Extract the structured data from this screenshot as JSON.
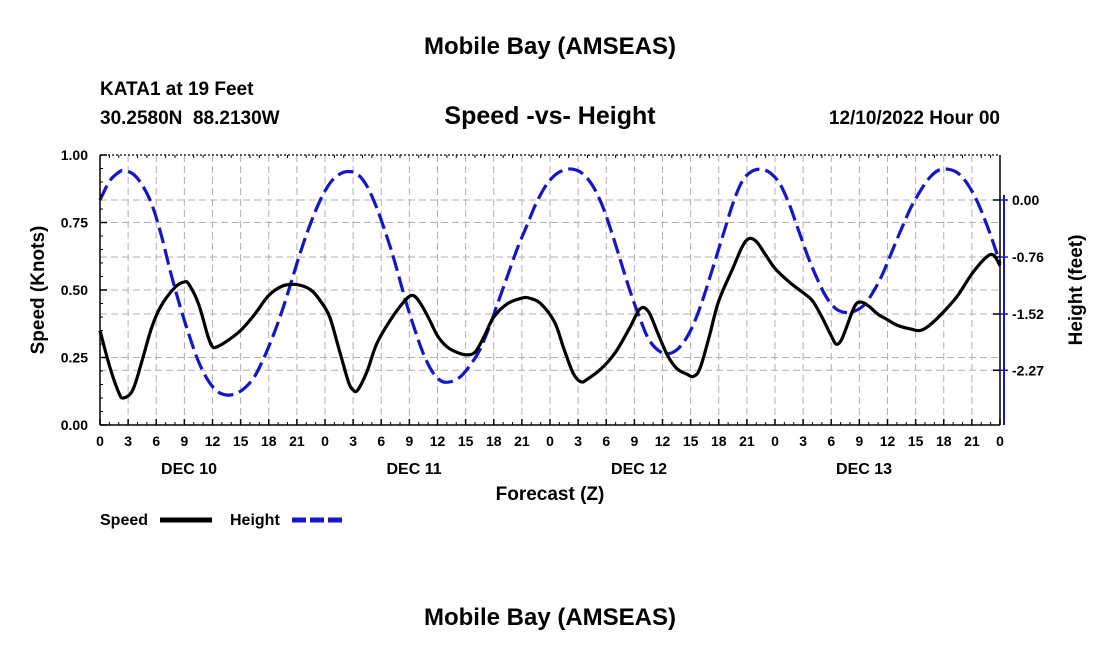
{
  "header": {
    "title": "Mobile Bay (AMSEAS)",
    "station": "KATA1 at 19 Feet",
    "coords": "30.2580N  88.2130W",
    "subtitle": "Speed -vs- Height",
    "date": "12/10/2022 Hour 00",
    "footer_title": "Mobile Bay (AMSEAS)"
  },
  "chart_data": {
    "type": "line",
    "title": "Speed -vs- Height",
    "xlabel": "Forecast (Z)",
    "ylabel_left": "Speed (Knots)",
    "ylabel_right": "Height (feet)",
    "x_range_hours": [
      0,
      96
    ],
    "x_tick_step_hours": 3,
    "x_tick_labels": [
      "0",
      "3",
      "6",
      "9",
      "12",
      "15",
      "18",
      "21",
      "0",
      "3",
      "6",
      "9",
      "12",
      "15",
      "18",
      "21",
      "0",
      "3",
      "6",
      "9",
      "12",
      "15",
      "18",
      "21",
      "0",
      "3",
      "6",
      "9",
      "12",
      "15",
      "18",
      "21",
      "0"
    ],
    "day_labels": [
      {
        "label": "DEC 10",
        "hour": 9.5
      },
      {
        "label": "DEC 11",
        "hour": 33.5
      },
      {
        "label": "DEC 12",
        "hour": 57.5
      },
      {
        "label": "DEC 13",
        "hour": 81.5
      }
    ],
    "y_left": {
      "range": [
        0,
        1.0
      ],
      "ticks": [
        0.0,
        0.25,
        0.5,
        0.75,
        1.0
      ],
      "tick_labels": [
        "0.00",
        "0.25",
        "0.50",
        "0.75",
        "1.00"
      ]
    },
    "y_right": {
      "range": [
        -3.0,
        0.6
      ],
      "ticks": [
        0.0,
        -0.76,
        -1.52,
        -2.27
      ],
      "tick_labels": [
        "0.00",
        "-0.76",
        "-1.52",
        "-2.27"
      ]
    },
    "grid": true,
    "legend": [
      {
        "name": "Speed",
        "color": "#000000",
        "style": "solid"
      },
      {
        "name": "Height",
        "color": "#1515cc",
        "style": "dashed"
      }
    ],
    "series": [
      {
        "name": "Speed",
        "axis": "left",
        "color": "#000000",
        "style": "solid",
        "points": [
          [
            0,
            0.35
          ],
          [
            1,
            0.22
          ],
          [
            2,
            0.12
          ],
          [
            2.5,
            0.1
          ],
          [
            3.5,
            0.13
          ],
          [
            4.5,
            0.24
          ],
          [
            5.5,
            0.36
          ],
          [
            6.5,
            0.44
          ],
          [
            8,
            0.51
          ],
          [
            9,
            0.53
          ],
          [
            9.5,
            0.52
          ],
          [
            10.5,
            0.45
          ],
          [
            11.5,
            0.33
          ],
          [
            12,
            0.29
          ],
          [
            12.5,
            0.29
          ],
          [
            13.5,
            0.31
          ],
          [
            15,
            0.35
          ],
          [
            16.5,
            0.41
          ],
          [
            18,
            0.48
          ],
          [
            19.5,
            0.515
          ],
          [
            21,
            0.52
          ],
          [
            22.5,
            0.5
          ],
          [
            23.5,
            0.46
          ],
          [
            24.5,
            0.4
          ],
          [
            25.5,
            0.28
          ],
          [
            26.5,
            0.16
          ],
          [
            27,
            0.13
          ],
          [
            27.5,
            0.13
          ],
          [
            28.5,
            0.2
          ],
          [
            29.5,
            0.3
          ],
          [
            31,
            0.39
          ],
          [
            32.5,
            0.46
          ],
          [
            33.3,
            0.48
          ],
          [
            34,
            0.46
          ],
          [
            35,
            0.4
          ],
          [
            36,
            0.33
          ],
          [
            37,
            0.29
          ],
          [
            38,
            0.27
          ],
          [
            39,
            0.26
          ],
          [
            40,
            0.27
          ],
          [
            41,
            0.33
          ],
          [
            42,
            0.4
          ],
          [
            43.5,
            0.45
          ],
          [
            45,
            0.47
          ],
          [
            45.8,
            0.47
          ],
          [
            47,
            0.45
          ],
          [
            48.5,
            0.38
          ],
          [
            49.5,
            0.28
          ],
          [
            50.5,
            0.19
          ],
          [
            51.3,
            0.16
          ],
          [
            52,
            0.17
          ],
          [
            53.5,
            0.21
          ],
          [
            55,
            0.27
          ],
          [
            56.5,
            0.36
          ],
          [
            57.6,
            0.43
          ],
          [
            58.5,
            0.42
          ],
          [
            59.5,
            0.34
          ],
          [
            60.5,
            0.26
          ],
          [
            61.5,
            0.21
          ],
          [
            62.5,
            0.19
          ],
          [
            63.3,
            0.18
          ],
          [
            64,
            0.21
          ],
          [
            65,
            0.33
          ],
          [
            66,
            0.46
          ],
          [
            67.5,
            0.58
          ],
          [
            68.5,
            0.66
          ],
          [
            69.2,
            0.69
          ],
          [
            70,
            0.68
          ],
          [
            71,
            0.63
          ],
          [
            72,
            0.58
          ],
          [
            73.5,
            0.53
          ],
          [
            75,
            0.49
          ],
          [
            76,
            0.46
          ],
          [
            77,
            0.4
          ],
          [
            78,
            0.33
          ],
          [
            78.5,
            0.3
          ],
          [
            79,
            0.31
          ],
          [
            79.5,
            0.35
          ],
          [
            80.5,
            0.44
          ],
          [
            81.2,
            0.455
          ],
          [
            82,
            0.44
          ],
          [
            83,
            0.41
          ],
          [
            84,
            0.39
          ],
          [
            85,
            0.37
          ],
          [
            86.5,
            0.355
          ],
          [
            87.5,
            0.35
          ],
          [
            88.5,
            0.37
          ],
          [
            90,
            0.42
          ],
          [
            91.5,
            0.48
          ],
          [
            93,
            0.56
          ],
          [
            94.5,
            0.62
          ],
          [
            95.3,
            0.63
          ],
          [
            96,
            0.59
          ]
        ]
      },
      {
        "name": "Height",
        "axis": "right",
        "color": "#1515cc",
        "style": "dashed",
        "points": [
          [
            0,
            0.0
          ],
          [
            1,
            0.25
          ],
          [
            2,
            0.37
          ],
          [
            2.5,
            0.39
          ],
          [
            3.5,
            0.35
          ],
          [
            4.5,
            0.2
          ],
          [
            5.5,
            -0.05
          ],
          [
            6.5,
            -0.45
          ],
          [
            7.5,
            -0.95
          ],
          [
            8.5,
            -1.4
          ],
          [
            9.5,
            -1.8
          ],
          [
            10.5,
            -2.15
          ],
          [
            11.5,
            -2.4
          ],
          [
            12.5,
            -2.55
          ],
          [
            13.5,
            -2.6
          ],
          [
            14.5,
            -2.58
          ],
          [
            15.5,
            -2.5
          ],
          [
            16.5,
            -2.35
          ],
          [
            17.5,
            -2.1
          ],
          [
            18.5,
            -1.8
          ],
          [
            19.5,
            -1.45
          ],
          [
            20.5,
            -1.05
          ],
          [
            21.5,
            -0.65
          ],
          [
            22.5,
            -0.3
          ],
          [
            23.5,
            0.0
          ],
          [
            24.5,
            0.22
          ],
          [
            25.5,
            0.34
          ],
          [
            26.5,
            0.38
          ],
          [
            27.5,
            0.34
          ],
          [
            28.5,
            0.18
          ],
          [
            29.5,
            -0.1
          ],
          [
            30.5,
            -0.45
          ],
          [
            31.5,
            -0.85
          ],
          [
            32.5,
            -1.3
          ],
          [
            33.5,
            -1.7
          ],
          [
            34.5,
            -2.05
          ],
          [
            35.5,
            -2.3
          ],
          [
            36.5,
            -2.42
          ],
          [
            37.5,
            -2.42
          ],
          [
            38.5,
            -2.35
          ],
          [
            39.5,
            -2.2
          ],
          [
            40.5,
            -2.0
          ],
          [
            41.5,
            -1.7
          ],
          [
            42.5,
            -1.35
          ],
          [
            43.5,
            -1.0
          ],
          [
            44.5,
            -0.65
          ],
          [
            45.5,
            -0.35
          ],
          [
            46.5,
            -0.05
          ],
          [
            47.5,
            0.18
          ],
          [
            48.5,
            0.33
          ],
          [
            49.5,
            0.4
          ],
          [
            50.5,
            0.41
          ],
          [
            51.5,
            0.35
          ],
          [
            52.5,
            0.2
          ],
          [
            53.5,
            -0.05
          ],
          [
            54.5,
            -0.4
          ],
          [
            55.5,
            -0.8
          ],
          [
            56.5,
            -1.2
          ],
          [
            57.5,
            -1.55
          ],
          [
            58.5,
            -1.85
          ],
          [
            59.5,
            -2.0
          ],
          [
            60.5,
            -2.05
          ],
          [
            61.5,
            -2.0
          ],
          [
            62.5,
            -1.85
          ],
          [
            63.5,
            -1.6
          ],
          [
            64.5,
            -1.25
          ],
          [
            65.5,
            -0.85
          ],
          [
            66.5,
            -0.45
          ],
          [
            67.5,
            -0.05
          ],
          [
            68.5,
            0.25
          ],
          [
            69.5,
            0.38
          ],
          [
            70.5,
            0.41
          ],
          [
            71.5,
            0.36
          ],
          [
            72.5,
            0.22
          ],
          [
            73.5,
            -0.05
          ],
          [
            74.5,
            -0.4
          ],
          [
            75.5,
            -0.75
          ],
          [
            76.5,
            -1.05
          ],
          [
            77.5,
            -1.3
          ],
          [
            78.5,
            -1.45
          ],
          [
            79.5,
            -1.5
          ],
          [
            80.5,
            -1.48
          ],
          [
            81.5,
            -1.4
          ],
          [
            82.5,
            -1.22
          ],
          [
            83.5,
            -0.98
          ],
          [
            84.5,
            -0.68
          ],
          [
            85.5,
            -0.38
          ],
          [
            86.5,
            -0.1
          ],
          [
            87.5,
            0.12
          ],
          [
            88.5,
            0.3
          ],
          [
            89.5,
            0.4
          ],
          [
            90.5,
            0.41
          ],
          [
            91.5,
            0.36
          ],
          [
            92.5,
            0.22
          ],
          [
            93.5,
            0.0
          ],
          [
            94.5,
            -0.3
          ],
          [
            95.5,
            -0.65
          ],
          [
            96,
            -0.85
          ]
        ]
      }
    ]
  }
}
